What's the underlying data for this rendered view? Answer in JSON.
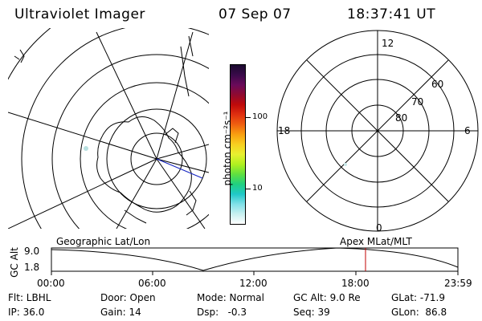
{
  "header": {
    "title": "Ultraviolet Imager",
    "date": "07 Sep 07",
    "time": "18:37:41 UT"
  },
  "colorbar": {
    "unit_label": "photon cm⁻²s⁻¹",
    "ticks": [
      "100",
      "10"
    ],
    "colors": [
      "#1a0a2e",
      "#3a0a4a",
      "#6a0a5a",
      "#900a30",
      "#c00a0a",
      "#e03010",
      "#f06010",
      "#f8a010",
      "#f8d020",
      "#e8f030",
      "#b0f020",
      "#60e040",
      "#20d080",
      "#20c8c8",
      "#80e0e8",
      "#c8f0f0",
      "#ffffff"
    ]
  },
  "right_polar": {
    "mlt_labels": {
      "top": "12",
      "left": "18",
      "right": "6",
      "bottom": "0"
    },
    "lat_labels": [
      "60",
      "70",
      "80"
    ]
  },
  "timeline": {
    "left_label": "Geographic Lat/Lon",
    "right_label": "Apex MLat/MLT",
    "y_axis_title": "GC Alt",
    "y_ticks": [
      "9.0",
      "1.8"
    ],
    "x_ticks": [
      "00:00",
      "06:00",
      "12:00",
      "18:00",
      "23:59"
    ],
    "marker_time": "18:37",
    "marker_color": "#c00000"
  },
  "info": {
    "row1": {
      "filter": "Flt: LBHL",
      "door": "Door: Open",
      "mode": "Mode: Normal",
      "gc_alt": "GC Alt: 9.0 Re",
      "glat": "GLat: -71.9"
    },
    "row2": {
      "ip": "IP: 36.0",
      "gain": "Gain: 14",
      "dsp": "Dsp:   -0.3",
      "seq": "Seq: 39",
      "glon": "GLon:  86.8"
    }
  }
}
